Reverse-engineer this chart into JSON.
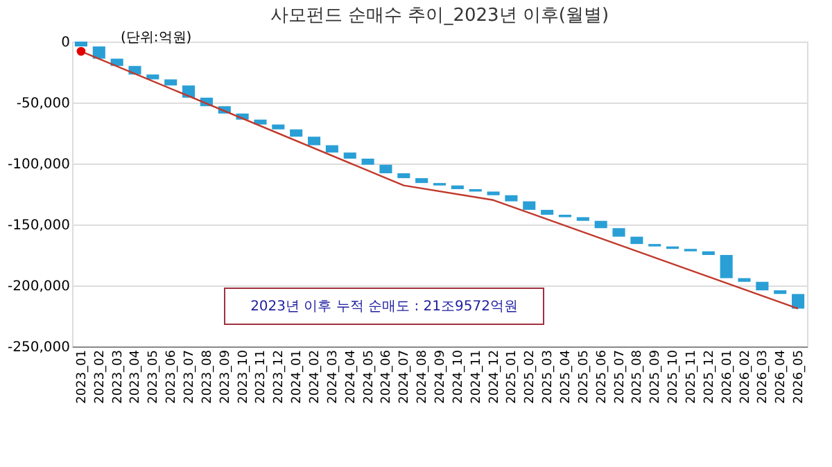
{
  "chart_data": {
    "type": "bar",
    "title": "사모펀드 순매수 추이_2023년 이후(월별)",
    "categories": [
      "2023_01",
      "2023_02",
      "2023_03",
      "2023_04",
      "2023_05",
      "2023_06",
      "2023_07",
      "2023_08",
      "2023_09",
      "2023_10",
      "2023_11",
      "2023_12",
      "2024_01",
      "2024_02",
      "2024_03",
      "2024_04",
      "2024_05",
      "2024_06",
      "2024_07",
      "2024_08",
      "2024_09",
      "2024_10",
      "2024_11",
      "2024_12",
      "2025_01",
      "2025_02",
      "2025_03",
      "2025_04",
      "2025_05",
      "2025_06",
      "2025_07",
      "2025_08",
      "2025_09",
      "2025_10",
      "2025_11",
      "2025_12",
      "2026_01",
      "2026_02",
      "2026_03",
      "2026_04",
      "2026_05"
    ],
    "series": [
      {
        "color": "#2a9fd6",
        "base": [
          0,
          -4000,
          -14000,
          -20000,
          -27000,
          -31000,
          -36000,
          -46000,
          -53000,
          -59000,
          -64000,
          -68000,
          -72000,
          -78000,
          -85000,
          -91000,
          -96000,
          -101000,
          -108000,
          -112000,
          -116000,
          -118000,
          -121000,
          -123000,
          -126000,
          -131000,
          -138000,
          -142000,
          -144000,
          -147000,
          -153000,
          -160000,
          -166000,
          -168000,
          -170000,
          -172000,
          -175000,
          -194000,
          -197000,
          -204000,
          -207000
        ],
        "values": [
          -4000,
          -10000,
          -6000,
          -7000,
          -4000,
          -5000,
          -10000,
          -7000,
          -6000,
          -5000,
          -4000,
          -4000,
          -6000,
          -7000,
          -6000,
          -5000,
          -5000,
          -7000,
          -4000,
          -4000,
          -2000,
          -3000,
          -2000,
          -3000,
          -5000,
          -7000,
          -4000,
          -2000,
          -3000,
          -6000,
          -7000,
          -6000,
          -2000,
          -2000,
          -2000,
          -3000,
          -19000,
          -3000,
          -7000,
          -3000,
          -12000
        ]
      },
      {
        "type": "line",
        "color": "#c0392b",
        "x": [
          "2023_01",
          "2024_07",
          "2024_12",
          "2026_05"
        ],
        "values": [
          -8000,
          -118000,
          -130000,
          -219000
        ]
      },
      {
        "type": "scatter",
        "color": "#e00000",
        "x": [
          "2023_01"
        ],
        "values": [
          -8000
        ],
        "marker": "circle"
      }
    ],
    "ylim": [
      -250000,
      0
    ],
    "yticks": [
      {
        "value": -250000,
        "label": "-250,000"
      },
      {
        "value": -200000,
        "label": "-200,000"
      },
      {
        "value": -150000,
        "label": "-150,000"
      },
      {
        "value": -100000,
        "label": "-100,000"
      },
      {
        "value": -50000,
        "label": "-50,000"
      },
      0
    ],
    "grid": "y",
    "annotations": [
      "(단위:억원)",
      "2023년 이후 누적 순매도 : 21조9572억원"
    ]
  }
}
